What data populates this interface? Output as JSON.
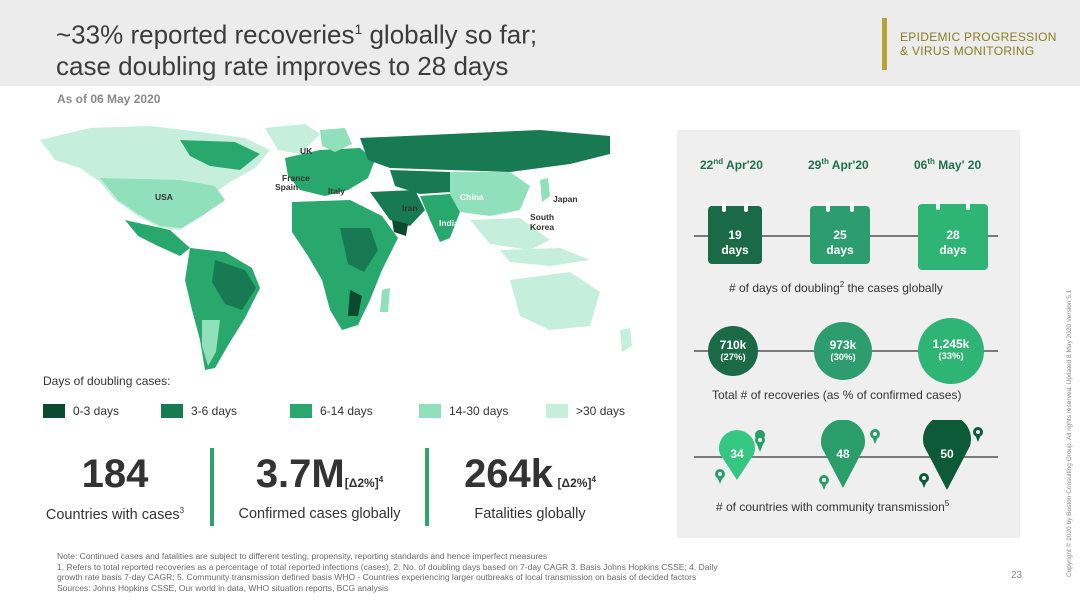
{
  "header": {
    "title_line1": "~33% reported recoveries",
    "title_sup": "1",
    "title_line1_end": " globally so far;",
    "title_line2": "case doubling rate improves to 28 days",
    "tag_line1": "EPIDEMIC PROGRESSION",
    "tag_line2": "& VIRUS MONITORING",
    "accent_color": "#b5a433"
  },
  "date_label": "As of 06 May 2020",
  "map": {
    "labels": [
      "UK",
      "France",
      "Spain",
      "Italy",
      "Iran",
      "USA",
      "China",
      "India",
      "Japan",
      "South",
      "Korea"
    ]
  },
  "legend": {
    "title": "Days of doubling cases:",
    "items": [
      {
        "label": "0-3 days",
        "color": "#0b4a2e"
      },
      {
        "label": "3-6 days",
        "color": "#187a53"
      },
      {
        "label": "6-14 days",
        "color": "#29a86e"
      },
      {
        "label": "14-30 days",
        "color": "#8fe0bb"
      },
      {
        "label": ">30 days",
        "color": "#c6eedc"
      }
    ]
  },
  "stats": {
    "countries": {
      "value": "184",
      "caption": "Countries with cases",
      "sup": "3"
    },
    "confirmed": {
      "value": "3.7M",
      "delta": "[Δ2%]",
      "delta_sup": "4",
      "caption": "Confirmed cases globally"
    },
    "fatalities": {
      "value": "264k",
      "delta": "[Δ2%]",
      "delta_sup": "4",
      "caption": "Fatalities globally"
    }
  },
  "panel": {
    "dates": [
      {
        "day": "22",
        "sup": "nd",
        "rest": " Apr'20"
      },
      {
        "day": "29",
        "sup": "th",
        "rest": " Apr'20"
      },
      {
        "day": "06",
        "sup": "th",
        "rest": " May' 20"
      }
    ],
    "doubling": {
      "items": [
        {
          "value": "19",
          "unit": "days",
          "color": "#1a6a47"
        },
        {
          "value": "25",
          "unit": "days",
          "color": "#2d9d6f"
        },
        {
          "value": "28",
          "unit": "days",
          "color": "#2eb474"
        }
      ],
      "caption": "# of days of doubling",
      "caption_sup": "2",
      "caption_end": " the cases globally"
    },
    "recoveries": {
      "items": [
        {
          "value": "710k",
          "pct": "(27%)",
          "color": "#1a6a47"
        },
        {
          "value": "973k",
          "pct": "(30%)",
          "color": "#2d9d6f"
        },
        {
          "value": "1,245k",
          "pct": "(33%)",
          "color": "#2eb474"
        }
      ],
      "caption": "Total # of recoveries (as % of confirmed cases)"
    },
    "community": {
      "items": [
        {
          "value": "34",
          "color": "#35c682"
        },
        {
          "value": "48",
          "color": "#2a9d6b"
        },
        {
          "value": "50",
          "color": "#0d5a38"
        }
      ],
      "caption": "# of countries with community transmission",
      "caption_sup": "5"
    }
  },
  "notes": [
    "Note: Continued cases and fatalities are subject to different testing, propensity, reporting standards and hence imperfect measures",
    "1. Refers to total reported recoveries as a percentage of total reported infections (cases), 2. No. of doubling days based on 7-day CAGR   3. Basis Johns Hopkins CSSE; 4. Daily",
    "growth rate basis 7-day CAGR; 5. Community transmission defined basis WHO - Countries experiencing larger outbreaks of local transmission on basis of decided factors",
    "Sources: Johns Hopkins  CSSE, Our world in data, WHO situation reports, BCG analysis"
  ],
  "page_number": "23",
  "copyright": "Copyright © 2020 by Boston Consulting Group. All rights reserved.  Updated 8 May 2020 Version 5.1"
}
